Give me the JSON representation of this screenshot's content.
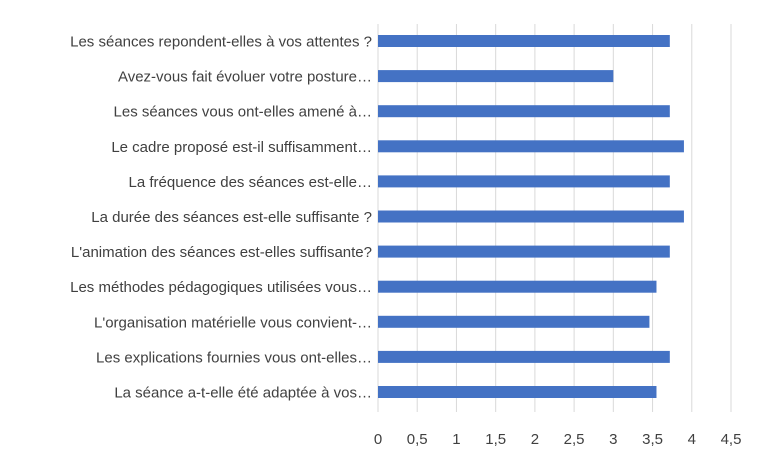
{
  "chart_data": {
    "type": "bar",
    "orientation": "horizontal",
    "title": "",
    "xlabel": "",
    "ylabel": "",
    "categories": [
      "Les séances repondent-elles à vos attentes ?",
      "Avez-vous fait évoluer votre posture…",
      "Les séances vous ont-elles amené à…",
      "Le cadre proposé est-il suffisamment…",
      "La fréquence des séances est-elle…",
      "La durée des séances est-elle suffisante ?",
      "L'animation des séances est-elles suffisante?",
      "Les méthodes pédagogiques utilisées vous…",
      "L'organisation matérielle vous convient-…",
      "Les explications fournies vous ont-elles…",
      "La séance a-t-elle été adaptée à vos…"
    ],
    "values": [
      3.72,
      3.0,
      3.72,
      3.9,
      3.72,
      3.9,
      3.72,
      3.55,
      3.46,
      3.72,
      3.55
    ],
    "xlim": [
      0,
      4.5
    ],
    "x_ticks": [
      "0",
      "0,5",
      "1",
      "1,5",
      "2",
      "2,5",
      "3",
      "3,5",
      "4",
      "4,5"
    ],
    "x_tick_values": [
      0,
      0.5,
      1,
      1.5,
      2,
      2.5,
      3,
      3.5,
      4,
      4.5
    ],
    "grid": true,
    "legend": "none",
    "bar_color": "#4472c4",
    "grid_color": "#d9d9d9",
    "label_color": "#404040"
  }
}
